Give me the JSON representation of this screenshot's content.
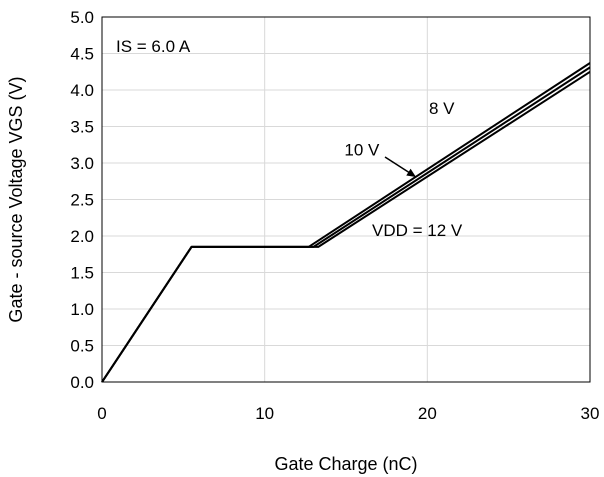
{
  "chart_data": {
    "type": "line",
    "title": "",
    "xlabel": "Gate Charge  (nC)",
    "ylabel": "Gate - source Voltage VGS (V)",
    "xlim": [
      0,
      30
    ],
    "ylim": [
      0,
      5.0
    ],
    "x_ticks": [
      "0",
      "10",
      "20",
      "30"
    ],
    "y_ticks": [
      "0.0",
      "0.5",
      "1.0",
      "1.5",
      "2.0",
      "2.5",
      "3.0",
      "3.5",
      "4.0",
      "4.5",
      "5.0"
    ],
    "grid": true,
    "condition_label": "IS = 6.0 A",
    "series": [
      {
        "name": "8 V",
        "points": [
          [
            0,
            0
          ],
          [
            5.5,
            1.85
          ],
          [
            12.7,
            1.85
          ],
          [
            30,
            4.37
          ]
        ]
      },
      {
        "name": "10 V",
        "points": [
          [
            0,
            0
          ],
          [
            5.5,
            1.85
          ],
          [
            13.0,
            1.85
          ],
          [
            30,
            4.31
          ]
        ]
      },
      {
        "name": "VDD = 12 V",
        "points": [
          [
            0,
            0
          ],
          [
            5.5,
            1.85
          ],
          [
            13.3,
            1.85
          ],
          [
            30,
            4.25
          ]
        ]
      }
    ],
    "annotations": [
      {
        "text": "8 V",
        "x": 20.1,
        "y": 3.67
      },
      {
        "text": "10 V",
        "x": 14.9,
        "y": 3.1
      },
      {
        "text": "VDD = 12 V",
        "x": 16.6,
        "y": 2.0
      }
    ]
  }
}
